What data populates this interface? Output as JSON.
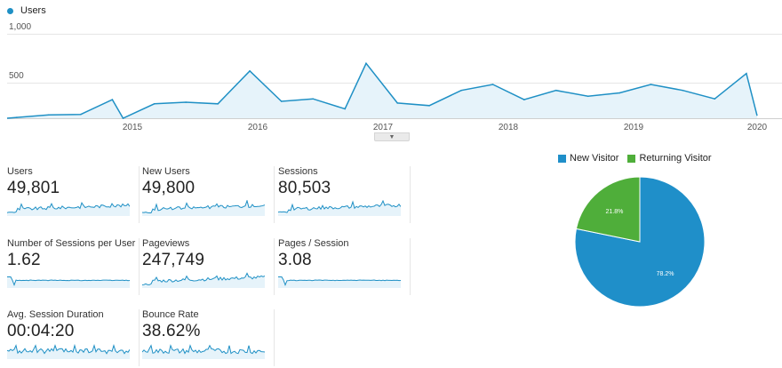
{
  "chart_data": [
    {
      "type": "line",
      "series_name": "Users",
      "y_ticks": [
        "1,000",
        "500"
      ],
      "x_ticks": [
        "2015",
        "2016",
        "2017",
        "2018",
        "2019",
        "2020"
      ],
      "ylim": [
        0,
        1000
      ],
      "x": [
        "2014-03",
        "2014-06",
        "2014-09",
        "2014-12",
        "2015-01",
        "2015-04",
        "2015-07",
        "2015-10",
        "2016-01",
        "2016-04",
        "2016-07",
        "2016-10",
        "2016-12",
        "2017-03",
        "2017-06",
        "2017-09",
        "2017-12",
        "2018-03",
        "2018-06",
        "2018-09",
        "2018-12",
        "2019-03",
        "2019-06",
        "2019-09",
        "2019-12"
      ],
      "values": [
        10,
        40,
        45,
        220,
        0,
        170,
        190,
        170,
        560,
        200,
        230,
        110,
        650,
        180,
        150,
        330,
        400,
        220,
        330,
        260,
        300,
        400,
        330,
        230,
        530
      ],
      "color": "#1f90c5"
    },
    {
      "type": "pie",
      "series": [
        {
          "name": "New Visitor",
          "value": 78.2,
          "label": "78.2%",
          "color": "#1f8fc9"
        },
        {
          "name": "Returning Visitor",
          "value": 21.8,
          "label": "21.8%",
          "color": "#4fae3a"
        }
      ]
    }
  ],
  "legend": {
    "series_label": "Users",
    "series_color": "#1f90c5"
  },
  "metrics": [
    {
      "label": "Users",
      "value": "49,801",
      "trend": "vol"
    },
    {
      "label": "New Users",
      "value": "49,800",
      "trend": "vol"
    },
    {
      "label": "Sessions",
      "value": "80,503",
      "trend": "vol"
    },
    {
      "label": "Number of Sessions per User",
      "value": "1.62",
      "trend": "flat"
    },
    {
      "label": "Pageviews",
      "value": "247,749",
      "trend": "vol"
    },
    {
      "label": "Pages / Session",
      "value": "3.08",
      "trend": "flat"
    },
    {
      "label": "Avg. Session Duration",
      "value": "00:04:20",
      "trend": "noisy"
    },
    {
      "label": "Bounce Rate",
      "value": "38.62%",
      "trend": "noisy"
    }
  ],
  "expander_icon": "chevron-down-icon"
}
